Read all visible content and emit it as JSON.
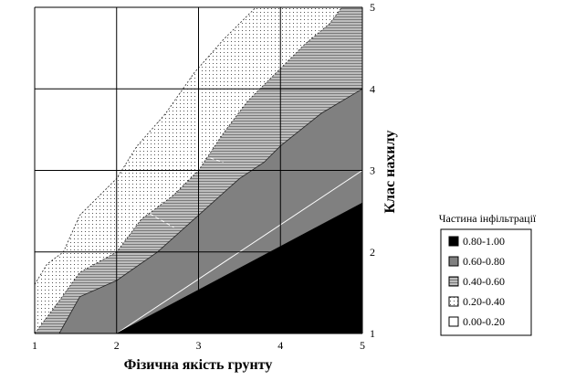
{
  "chart_data": {
    "type": "area",
    "title": "",
    "xlabel": "Фізична якість грунту",
    "ylabel": "Клас нахилу",
    "xlim": [
      1,
      5
    ],
    "ylim": [
      1,
      5
    ],
    "x_ticks": [
      "1",
      "2",
      "3",
      "4",
      "5"
    ],
    "y_ticks": [
      "1",
      "2",
      "3",
      "4",
      "5"
    ],
    "grid": true,
    "legend": {
      "title": "Частина інфільтрації",
      "placement": "right",
      "entries": [
        {
          "label": "0.80-1.00",
          "color": "#000000"
        },
        {
          "label": "0.60-0.80",
          "color": "#808080"
        },
        {
          "label": "0.40-0.60",
          "color": "#a8a8a8"
        },
        {
          "label": "0.20-0.40",
          "color": "#d9d9d9"
        },
        {
          "label": "0.00-0.20",
          "color": "#ffffff"
        }
      ]
    },
    "contour_boundaries": [
      {
        "between": [
          "0.60-0.80",
          "0.80-1.00"
        ],
        "points": [
          [
            2.0,
            1.0
          ],
          [
            5.0,
            2.6
          ]
        ]
      },
      {
        "between": [
          "0.40-0.60",
          "0.60-0.80"
        ],
        "points": [
          [
            1.3,
            1.0
          ],
          [
            1.55,
            1.45
          ],
          [
            2.0,
            1.65
          ],
          [
            2.5,
            2.0
          ],
          [
            3.0,
            2.45
          ],
          [
            3.5,
            2.9
          ],
          [
            3.8,
            3.1
          ],
          [
            4.0,
            3.3
          ],
          [
            4.5,
            3.7
          ],
          [
            5.0,
            4.0
          ]
        ]
      },
      {
        "between": [
          "0.20-0.40",
          "0.40-0.60"
        ],
        "points": [
          [
            1.0,
            1.0
          ],
          [
            1.3,
            1.4
          ],
          [
            1.55,
            1.75
          ],
          [
            2.0,
            2.0
          ],
          [
            2.3,
            2.4
          ],
          [
            2.7,
            2.7
          ],
          [
            3.0,
            3.0
          ],
          [
            3.3,
            3.45
          ],
          [
            3.6,
            3.85
          ],
          [
            3.95,
            4.2
          ],
          [
            4.3,
            4.55
          ],
          [
            4.6,
            4.8
          ],
          [
            4.75,
            5.0
          ]
        ]
      },
      {
        "between": [
          "0.00-0.20",
          "0.20-0.40"
        ],
        "points": [
          [
            1.0,
            1.6
          ],
          [
            1.15,
            1.85
          ],
          [
            1.35,
            2.0
          ],
          [
            1.55,
            2.45
          ],
          [
            2.0,
            2.9
          ],
          [
            2.25,
            3.3
          ],
          [
            2.6,
            3.7
          ],
          [
            2.95,
            4.2
          ],
          [
            3.3,
            4.6
          ],
          [
            3.65,
            4.95
          ],
          [
            3.7,
            5.0
          ]
        ]
      }
    ]
  }
}
